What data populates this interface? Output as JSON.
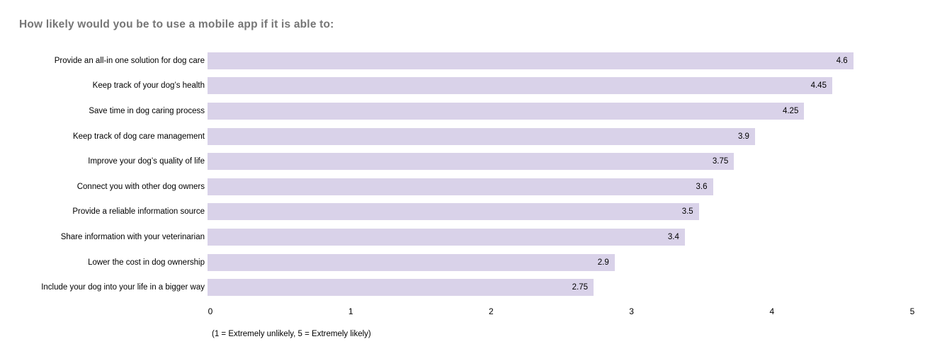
{
  "chart_data": {
    "type": "bar",
    "orientation": "horizontal",
    "title": "How likely would you be to use a mobile app if it is able to:",
    "categories": [
      "Provide an all-in one solution for dog care",
      "Keep track of your dog’s health",
      "Save time in dog caring process",
      "Keep track of dog care management",
      "Improve your dog’s quality of life",
      "Connect you with other dog owners",
      "Provide a reliable information source",
      "Share information with your veterinarian",
      "Lower the cost in dog ownership",
      "Include your dog into your life in a bigger way"
    ],
    "values": [
      4.6,
      4.45,
      4.25,
      3.9,
      3.75,
      3.6,
      3.5,
      3.4,
      2.9,
      2.75
    ],
    "value_labels": [
      "4.6",
      "4.45",
      "4.25",
      "3.9",
      "3.75",
      "3.6",
      "3.5",
      "3.4",
      "2.9",
      "2.75"
    ],
    "xlim": [
      0,
      5
    ],
    "x_ticks": [
      "0",
      "1",
      "2",
      "3",
      "4",
      "5"
    ],
    "footnote": "(1 = Extremely unlikely, 5 = Extremely likely)",
    "grid": false,
    "legend_position": "none",
    "colors": {
      "bar_fill": "#d9d2e9",
      "title_text": "#757575",
      "label_text": "#000000",
      "background": "#ffffff"
    }
  }
}
